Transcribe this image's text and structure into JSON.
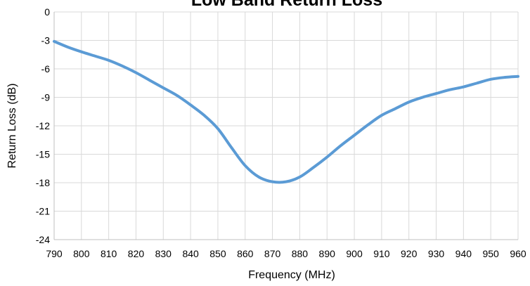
{
  "chart_data": {
    "type": "line",
    "title": "Low Band Return Loss",
    "xlabel": "Frequency (MHz)",
    "ylabel": "Return Loss (dB)",
    "xlim": [
      790,
      960
    ],
    "ylim": [
      -24,
      0
    ],
    "x_ticks": [
      790,
      800,
      810,
      820,
      830,
      840,
      850,
      860,
      870,
      880,
      890,
      900,
      910,
      920,
      930,
      940,
      950,
      960
    ],
    "x_tick_labels": [
      "790",
      "800",
      "810",
      "820",
      "830",
      "840",
      "850",
      "860",
      "870",
      "880",
      "890",
      "900",
      "910",
      "920",
      "930",
      "940",
      "950",
      "960"
    ],
    "y_ticks": [
      0,
      -3,
      -6,
      -9,
      -12,
      -15,
      -18,
      -21,
      -24
    ],
    "y_tick_labels": [
      "0",
      "-3",
      "-6",
      "-9",
      "-12",
      "-15",
      "-18",
      "-21",
      "-24"
    ],
    "grid": true,
    "legend": "none",
    "series": [
      {
        "color": "#5b9bd5",
        "x": [
          790,
          795,
          800,
          805,
          810,
          815,
          820,
          825,
          830,
          835,
          840,
          845,
          850,
          855,
          860,
          865,
          870,
          875,
          880,
          885,
          890,
          895,
          900,
          905,
          910,
          915,
          920,
          925,
          930,
          935,
          940,
          945,
          950,
          955,
          960
        ],
        "y": [
          -3.1,
          -3.7,
          -4.2,
          -4.65,
          -5.1,
          -5.7,
          -6.4,
          -7.2,
          -8.0,
          -8.8,
          -9.8,
          -10.9,
          -12.3,
          -14.3,
          -16.2,
          -17.4,
          -17.9,
          -17.9,
          -17.4,
          -16.4,
          -15.3,
          -14.1,
          -13.0,
          -11.9,
          -10.9,
          -10.2,
          -9.5,
          -9.0,
          -8.6,
          -8.2,
          -7.9,
          -7.5,
          -7.1,
          -6.9,
          -6.8
        ]
      }
    ]
  }
}
